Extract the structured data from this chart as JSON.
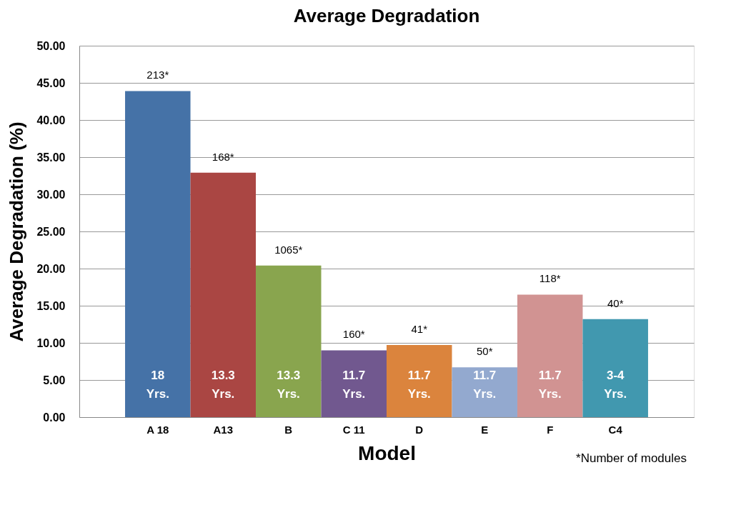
{
  "chart_data": {
    "type": "bar",
    "title": "Average Degradation",
    "xlabel": "Model",
    "ylabel": "Average Degradation (%)",
    "categories": [
      "A 18",
      "A13",
      "B",
      "C 11",
      "D",
      "E",
      "F",
      "C4"
    ],
    "values": [
      43.9,
      32.9,
      20.4,
      9.0,
      9.7,
      6.7,
      16.5,
      13.2
    ],
    "colors": [
      "#4572a7",
      "#aa4643",
      "#89a54e",
      "#71588f",
      "#db843d",
      "#93a9cf",
      "#d19392",
      "#4198af"
    ],
    "ylim": [
      0,
      50
    ],
    "yticks": [
      {
        "value": 0,
        "label": "0.00"
      },
      {
        "value": 5,
        "label": "5.00"
      },
      {
        "value": 10,
        "label": "10.00"
      },
      {
        "value": 15,
        "label": "15.00"
      },
      {
        "value": 20,
        "label": "20.00"
      },
      {
        "value": 25,
        "label": "25.00"
      },
      {
        "value": 30,
        "label": "30.00"
      },
      {
        "value": 35,
        "label": "35.00"
      },
      {
        "value": 40,
        "label": "40.00"
      },
      {
        "value": 45,
        "label": "45.00"
      },
      {
        "value": 50,
        "label": "50.00"
      }
    ],
    "annotations": [
      {
        "text": "213*",
        "x": "A 18",
        "y": 43.9
      },
      {
        "text": "168*",
        "x": "A13",
        "y": 32.9
      },
      {
        "text": "1065*",
        "x": "B",
        "y": 20.4
      },
      {
        "text": "160*",
        "x": "C 11",
        "y": 9.0
      },
      {
        "text": "41*",
        "x": "D",
        "y": 9.7
      },
      {
        "text": "50*",
        "x": "E",
        "y": 6.7
      },
      {
        "text": "118*",
        "x": "F",
        "y": 16.5
      },
      {
        "text": "40*",
        "x": "C4",
        "y": 13.2
      },
      "18 Yrs.",
      "13.3 Yrs.",
      "13.3 Yrs.",
      "11.7 Yrs.",
      "11.7 Yrs.",
      "11.7 Yrs.",
      "11.7 Yrs.",
      "3-4 Yrs.",
      "*Number of modules"
    ],
    "grid": "y"
  }
}
